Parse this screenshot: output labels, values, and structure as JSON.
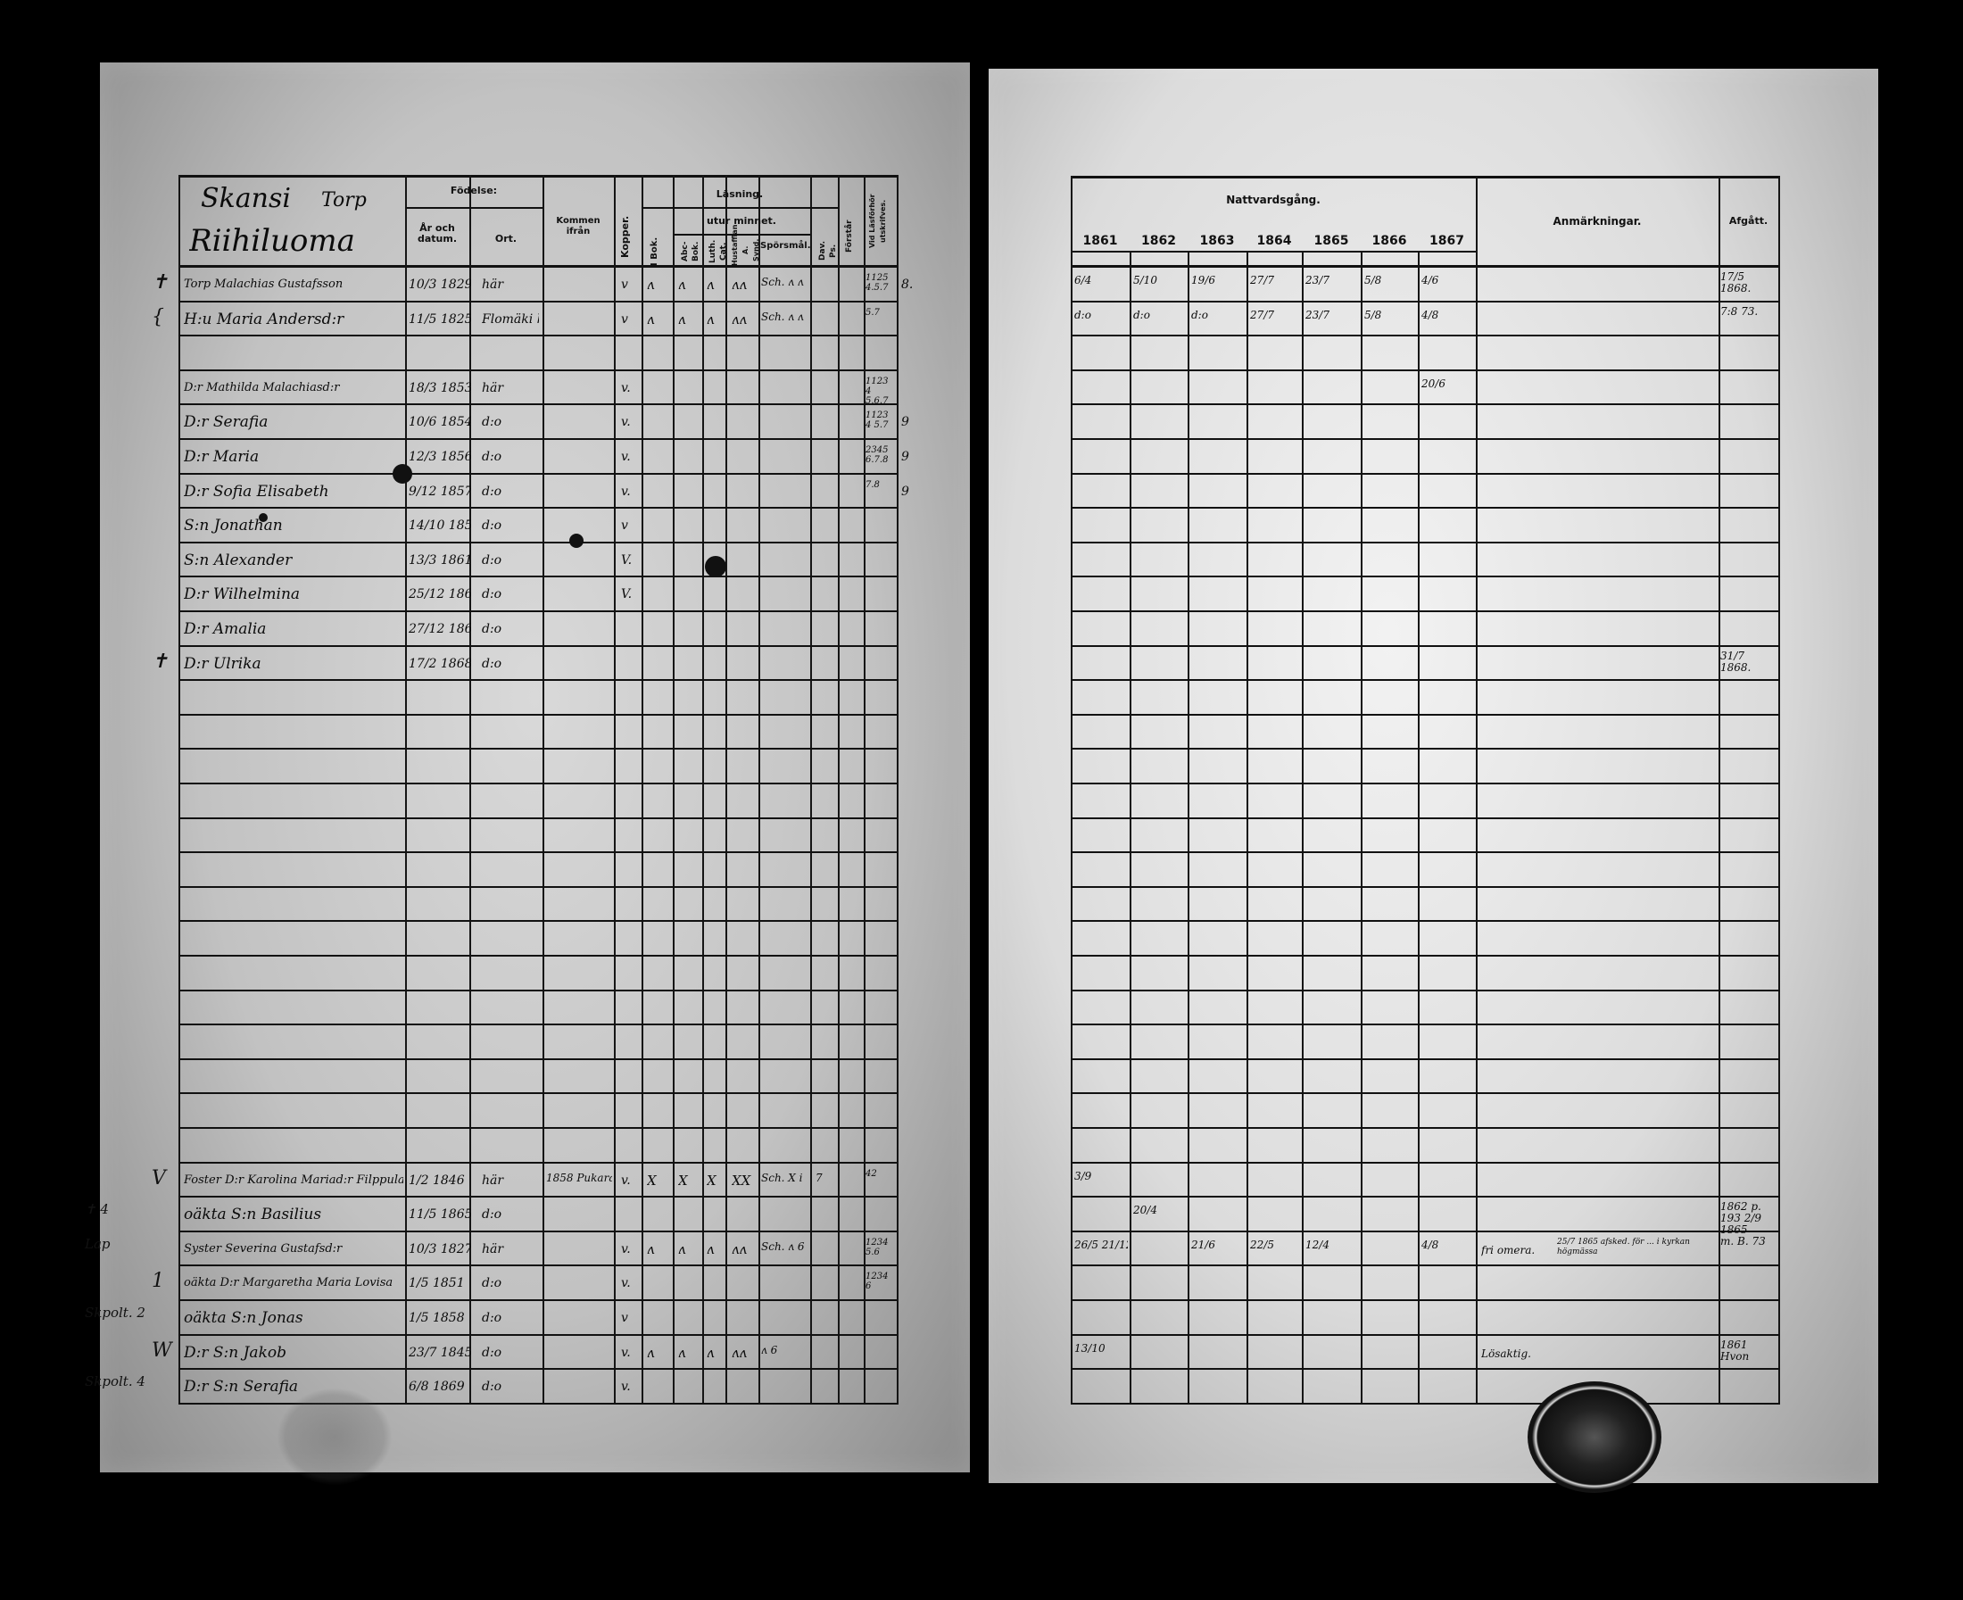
{
  "left_page": {
    "place": "Skansi",
    "place_type": "Torp",
    "farm": "Riihiluoma",
    "headers": {
      "fodelse": "Födelse:",
      "ar": "År och datum.",
      "ort": "Ort.",
      "kommen": "Kommen ifrån",
      "kopper": "Kopper.",
      "lasning": "Läsning.",
      "utur_minnet": "utur minnet.",
      "i_bok": "I Bok.",
      "abc": "Abc-Bok.",
      "luth": "Luth. Cat.",
      "hust": "Hustafflan A. Synd.",
      "sporsmal": "Spörsmål.",
      "dav": "Dav. Ps.",
      "forstar": "Förstår",
      "vid": "Vid Läsförhör utskrifves."
    },
    "rows": [
      {
        "row": 0,
        "mark": "✝",
        "name": "Torp Malachias Gustafsson",
        "date": "10/3 1829",
        "ort": "här",
        "kopper": "v",
        "reading": [
          "ʌ",
          "ʌ",
          "ʌ",
          "ʌʌ"
        ],
        "sporsmal": "Sch. ʌ ʌ",
        "vid": "1125 4.5.7",
        "extra": "8."
      },
      {
        "row": 1,
        "mark": "{",
        "name": "H:u Maria Andersd:r",
        "date": "11/5 1825",
        "ort": "Flomäki här",
        "kopper": "v",
        "reading": [
          "ʌ",
          "ʌ",
          "ʌ",
          "ʌʌ"
        ],
        "sporsmal": "Sch. ʌ ʌ",
        "vid": "5.7"
      },
      {
        "row": 3,
        "name": "D:r Mathilda Malachiasd:r",
        "date": "18/3 1853",
        "ort": "här",
        "kopper": "v.",
        "vid": "1123 4 5.6.7"
      },
      {
        "row": 4,
        "name": "D:r Serafia",
        "date": "10/6 1854",
        "ort": "d:o",
        "kopper": "v.",
        "vid": "1123 4 5.7",
        "extra": "9"
      },
      {
        "row": 5,
        "name": "D:r Maria",
        "date": "12/3 1856",
        "ort": "d:o",
        "kopper": "v.",
        "vid": "2345 6.7.8",
        "extra": "9"
      },
      {
        "row": 6,
        "name": "D:r Sofia Elisabeth",
        "date": "9/12 1857",
        "ort": "d:o",
        "kopper": "v.",
        "vid": "7.8",
        "extra": "9"
      },
      {
        "row": 7,
        "name": "S:n Jonathan",
        "date": "14/10 1859",
        "ort": "d:o",
        "kopper": "v"
      },
      {
        "row": 8,
        "name": "S:n Alexander",
        "date": "13/3 1861",
        "ort": "d:o",
        "kopper": "V."
      },
      {
        "row": 9,
        "name": "D:r Wilhelmina",
        "date": "25/12 1862",
        "ort": "d:o",
        "kopper": "V."
      },
      {
        "row": 10,
        "name": "D:r Amalia",
        "date": "27/12 1864",
        "ort": "d:o"
      },
      {
        "row": 11,
        "mark": "✝",
        "name": "D:r Ulrika",
        "date": "17/2 1868",
        "ort": "d:o"
      },
      {
        "row": 26,
        "mark": "V",
        "name": "Foster D:r Karolina Mariad:r Filppula",
        "date": "1/2 1846",
        "ort": "här",
        "kommen": "1858 Pukara",
        "kopper": "v.",
        "reading": [
          "X",
          "X",
          "X",
          "XX"
        ],
        "sporsmal": "Sch. X i",
        "dav": "7",
        "vid": "42"
      },
      {
        "row": 27,
        "mark": "✝ 4",
        "name": "oäkta S:n Basilius",
        "date": "11/5 1865",
        "ort": "d:o"
      },
      {
        "row": 28,
        "mark": "Lap",
        "name": "Syster Severina Gustafsd:r",
        "date": "10/3 1827",
        "ort": "här",
        "kopper": "v.",
        "reading": [
          "ʌ",
          "ʌ",
          "ʌ",
          "ʌʌ"
        ],
        "sporsmal": "Sch. ʌ 6",
        "vid": "1234 5.6"
      },
      {
        "row": 29,
        "mark": "1",
        "name": "oäkta D:r Margaretha Maria Lovisa",
        "date": "1/5 1851",
        "ort": "d:o",
        "kopper": "v.",
        "vid": "1234 6"
      },
      {
        "row": 30,
        "mark": "Skpolt. 2",
        "name": "oäkta S:n Jonas",
        "date": "1/5 1858",
        "ort": "d:o",
        "kopper": "v"
      },
      {
        "row": 31,
        "mark": "W",
        "name": "D:r S:n Jakob",
        "date": "23/7 1845",
        "ort": "d:o",
        "kopper": "v.",
        "reading": [
          "ʌ",
          "ʌ",
          "ʌ",
          "ʌʌ"
        ],
        "sporsmal": "ʌ 6"
      },
      {
        "row": 32,
        "mark": "Skpolt. 4",
        "name": "D:r S:n Serafia",
        "date": "6/8 1869",
        "ort": "d:o",
        "kopper": "v."
      }
    ]
  },
  "right_page": {
    "headers": {
      "nattvard": "Nattvardsgång.",
      "years": [
        "1861",
        "1862",
        "1863",
        "1864",
        "1865",
        "1866",
        "1867"
      ],
      "anmarkningar": "Anmärkningar.",
      "afgatt": "Afgått."
    },
    "rows": [
      {
        "row": 0,
        "communion": [
          "6/4",
          "5/10",
          "19/6",
          "27/7",
          "23/7",
          "5/8",
          "4/6"
        ],
        "afgatt": "17/5 1868."
      },
      {
        "row": 1,
        "communion": [
          "d:o",
          "d:o",
          "d:o",
          "27/7",
          "23/7",
          "5/8",
          "4/8"
        ],
        "afgatt": "7:8 73."
      },
      {
        "row": 3,
        "communion": [
          "",
          "",
          "",
          "",
          "",
          "",
          "20/6"
        ]
      },
      {
        "row": 11,
        "afgatt": "31/7 1868."
      },
      {
        "row": 26,
        "communion": [
          "3/9",
          "",
          "",
          "",
          "",
          "",
          ""
        ]
      },
      {
        "row": 27,
        "communion": [
          "",
          "20/4",
          "",
          "",
          "",
          "",
          ""
        ],
        "afgatt": "1862 p. 193 2/9 1865"
      },
      {
        "row": 28,
        "communion": [
          "26/5 21/12",
          "",
          "21/6",
          "22/5",
          "12/4",
          "",
          "4/8"
        ],
        "note": "fri omera.",
        "note2": "25/7 1865 afsked. för ... i kyrkan högmässa",
        "afgatt": "m. B. 73"
      },
      {
        "row": 31,
        "communion": [
          "13/10",
          "",
          "",
          "",
          "",
          "",
          ""
        ],
        "note": "Lösaktig.",
        "afgatt": "1861 Hvon"
      }
    ]
  },
  "colors": {
    "background": "#000000",
    "paper": "#d0d0d0",
    "ink": "#111111"
  }
}
